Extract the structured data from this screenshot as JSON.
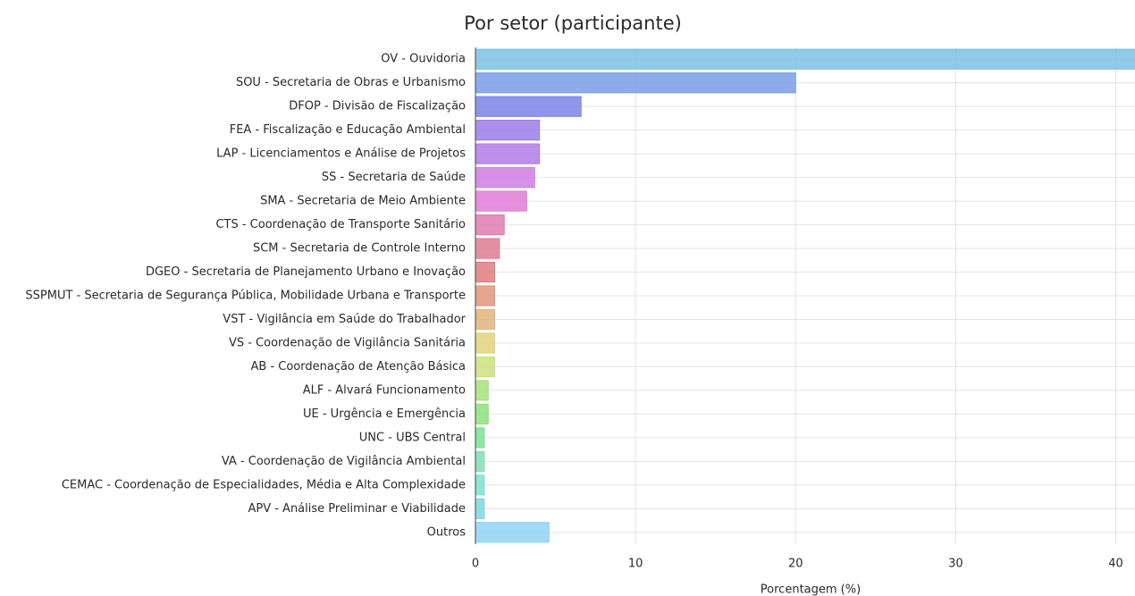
{
  "chart_data": {
    "type": "barh",
    "title": "Por setor (participante)",
    "xlabel": "Porcentagem (%)",
    "categories": [
      "OV - Ouvidoria",
      "SOU - Secretaria de Obras e Urbanismo",
      "DFOP - Divisão de Fiscalização",
      "FEA - Fiscalização e Educação Ambiental",
      "LAP - Licenciamentos e Análise de Projetos",
      "SS - Secretaria de Saúde",
      "SMA - Secretaria de Meio Ambiente",
      "CTS - Coordenação de Transporte Sanitário",
      "SCM - Secretaria de Controle Interno",
      "DGEO - Secretaria de Planejamento Urbano e Inovação",
      "SSPMUT - Secretaria de Segurança Pública, Mobilidade Urbana e Transporte",
      "VST - Vigilância em Saúde do Trabalhador",
      "VS - Coordenação de Vigilância Sanitária",
      "AB - Coordenação de Atenção Básica",
      "ALF - Alvará Funcionamento",
      "UE - Urgência e Emergência",
      "UNC - UBS Central",
      "VA - Coordenação de Vigilância Ambiental",
      "CEMAC - Coordenação de Especialidades, Média e Alta Complexidade",
      "APV - Análise Preliminar e Viabilidade",
      "Outros"
    ],
    "values": [
      42,
      20,
      6.6,
      4.0,
      4.0,
      3.7,
      3.2,
      1.8,
      1.5,
      1.2,
      1.2,
      1.2,
      1.2,
      1.2,
      0.8,
      0.8,
      0.55,
      0.55,
      0.55,
      0.55,
      4.6
    ],
    "colors": [
      "#7cc1e4",
      "#7b9ee6",
      "#7b84e6",
      "#9b7de6",
      "#b07de6",
      "#d07de6",
      "#e07dd6",
      "#e07db0",
      "#e07d90",
      "#e07d7d",
      "#e0977d",
      "#e0b47d",
      "#e0d47d",
      "#cfe07d",
      "#a8e07d",
      "#8de07d",
      "#7de094",
      "#7de0b4",
      "#7de0cf",
      "#7dd8e0",
      "#8fd3f5"
    ],
    "xlim": [
      0,
      41.2
    ],
    "xticks": [
      0,
      10,
      20,
      30,
      40
    ],
    "grid": true
  }
}
